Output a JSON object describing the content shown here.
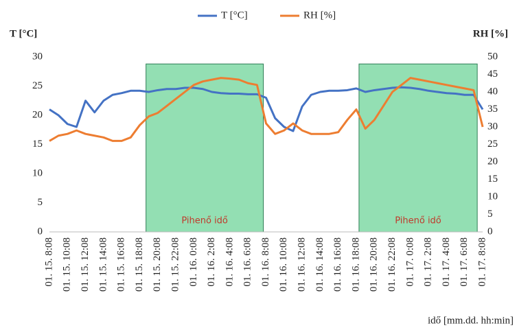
{
  "chart_data": {
    "type": "line",
    "y_label": "T [°C]",
    "y2_label": "RH [%]",
    "x_label": "idő [mm.dd. hh:min]",
    "categories": [
      "01. 15. 8:08",
      null,
      "01. 15. 10:08",
      null,
      "01. 15. 12:08",
      null,
      "01. 15. 14:08",
      null,
      "01. 15. 16:08",
      null,
      "01. 15. 18:08",
      null,
      "01. 15. 20:08",
      null,
      "01. 15. 22:08",
      null,
      "01. 16. 0:08",
      null,
      "01. 16. 2:08",
      null,
      "01. 16. 4:08",
      null,
      "01. 16. 6:08",
      null,
      "01. 16. 8:08",
      null,
      "01. 16. 10:08",
      null,
      "01. 16. 12:08",
      null,
      "01. 16. 14:08",
      null,
      "01. 16. 16:08",
      null,
      "01. 16. 18:08",
      null,
      "01. 16. 20:08",
      null,
      "01. 16. 22:08",
      null,
      "01. 17. 0:08",
      null,
      "01. 17. 2:08",
      null,
      "01. 17. 4:08",
      null,
      "01. 17. 6:08",
      null,
      "01. 17. 8:08"
    ],
    "series": [
      {
        "name": "T [°C]",
        "color": "#4472c4",
        "values": [
          21,
          20,
          18.5,
          18,
          22.5,
          20.5,
          22.5,
          23.5,
          23.8,
          24.2,
          24.2,
          24,
          24.3,
          24.5,
          24.5,
          24.7,
          24.7,
          24.5,
          24,
          23.8,
          23.7,
          23.7,
          23.6,
          23.6,
          23,
          19.5,
          18,
          17.3,
          21.5,
          23.5,
          24,
          24.2,
          24.2,
          24.3,
          24.6,
          24,
          24.3,
          24.5,
          24.7,
          24.8,
          24.7,
          24.5,
          24.2,
          24,
          23.8,
          23.7,
          23.5,
          23.5,
          21
        ]
      },
      {
        "name": "RH [%]",
        "color": "#ed7d31",
        "axis": "y2",
        "values": [
          26,
          27.5,
          28,
          29,
          28,
          27.5,
          27,
          26,
          26,
          27,
          30.5,
          33,
          34,
          36,
          38,
          40,
          42,
          43,
          43.5,
          44,
          43.8,
          43.5,
          42.5,
          42,
          31,
          28,
          29,
          31,
          29,
          28,
          28,
          28,
          28.5,
          32,
          35,
          29.5,
          32,
          36,
          40,
          42,
          44,
          43.5,
          43,
          42.5,
          42,
          41.5,
          41,
          40.5,
          30
        ]
      }
    ],
    "shaded": [
      {
        "from": 10.7,
        "to": 23.7,
        "top": 28.8,
        "label": "Pihenő idő"
      },
      {
        "from": 34.3,
        "to": 47.4,
        "top": 28.8,
        "label": "Pihenő idő"
      }
    ],
    "shade_color": "#6fd49a",
    "ylim": [
      0,
      30
    ],
    "yticks": [
      0,
      5,
      10,
      15,
      20,
      25,
      30
    ],
    "y2lim": [
      0,
      50
    ],
    "y2ticks": [
      0,
      5,
      10,
      15,
      20,
      25,
      30,
      35,
      40,
      45,
      50
    ],
    "grid": false,
    "legend": "top"
  }
}
